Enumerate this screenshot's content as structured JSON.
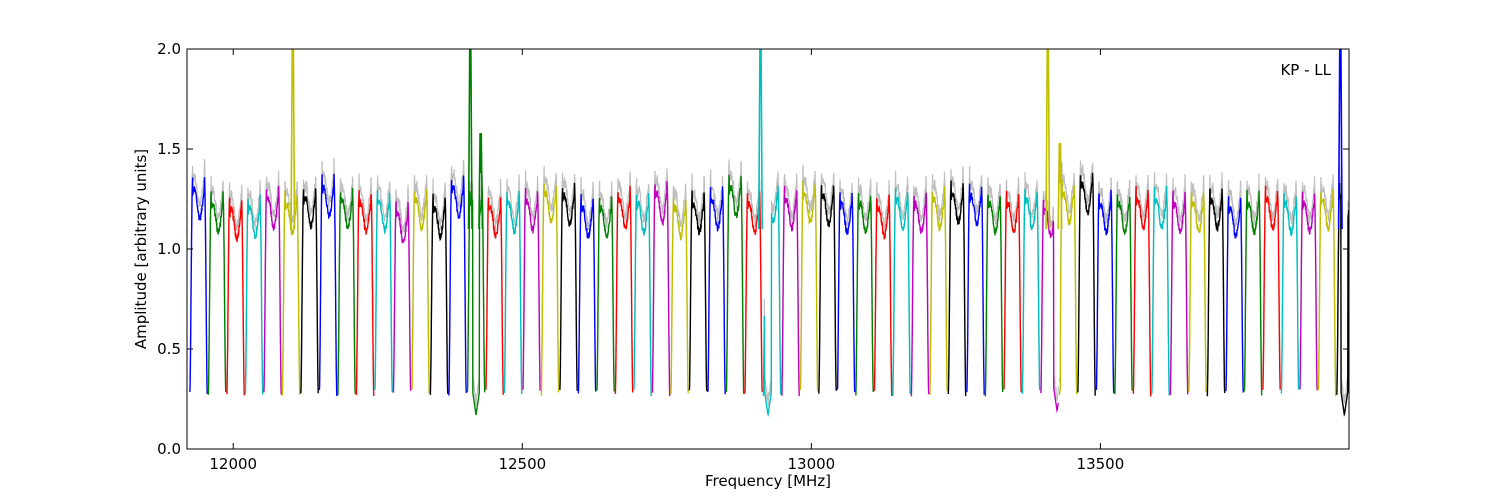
{
  "chart_data": {
    "type": "line",
    "title": "",
    "xlabel": "Frequency [MHz]",
    "ylabel": "Amplitude [arbitrary units]",
    "xlim": [
      11920,
      13930
    ],
    "ylim": [
      0.0,
      2.0
    ],
    "xticks": [
      12000,
      12500,
      13000,
      13500
    ],
    "yticks": [
      0.0,
      0.5,
      1.0,
      1.5,
      2.0
    ],
    "xtick_labels": [
      "12000",
      "12500",
      "13000",
      "13500"
    ],
    "ytick_labels": [
      "0.0",
      "0.5",
      "1.0",
      "1.5",
      "2.0"
    ],
    "annotation": "KP - LL",
    "annotation_position": "top-right",
    "grid": false,
    "legend": false,
    "color_cycle": [
      "#0000ff",
      "#008000",
      "#ff0000",
      "#00bfbf",
      "#bf00bf",
      "#bfbf00",
      "#000000"
    ],
    "background_trace_color": "#bfbfbf",
    "channel_start": 11925,
    "channel_width": 32,
    "channel_count": 63,
    "channel_shape": "bandpass: steep drop to ~0.28 at both edges, flat ~1.2 in the middle, slight peak near each edge",
    "channel_levels": [
      1.27,
      1.2,
      1.17,
      1.18,
      1.22,
      1.2,
      1.23,
      1.28,
      1.22,
      1.2,
      1.21,
      1.15,
      1.22,
      1.18,
      1.28,
      1.22,
      1.18,
      1.2,
      1.21,
      1.25,
      1.24,
      1.18,
      1.18,
      1.22,
      1.2,
      1.25,
      1.18,
      1.2,
      1.22,
      1.28,
      1.2,
      1.25,
      1.22,
      1.25,
      1.24,
      1.2,
      1.2,
      1.18,
      1.22,
      1.2,
      1.22,
      1.25,
      1.24,
      1.2,
      1.2,
      1.22,
      1.18,
      1.25,
      1.3,
      1.2,
      1.2,
      1.22,
      1.22,
      1.2,
      1.2,
      1.22,
      1.18,
      1.2,
      1.22,
      1.2,
      1.2,
      1.22,
      1.25
    ],
    "spikes": [
      {
        "x": 12103,
        "peak": 2.0,
        "color": "#bfbf00"
      },
      {
        "x": 12410,
        "peak": 2.0,
        "color": "#008000"
      },
      {
        "x": 12428,
        "peak": 1.58,
        "color": "#008000"
      },
      {
        "x": 12912,
        "peak": 2.0,
        "color": "#00bfbf"
      },
      {
        "x": 13409,
        "peak": 2.0,
        "color": "#bfbf00"
      },
      {
        "x": 13430,
        "peak": 1.53,
        "color": "#bfbf00"
      },
      {
        "x": 13915,
        "peak": 2.0,
        "color": "#0000ff"
      }
    ],
    "dips": [
      {
        "x": 12420,
        "value": 0.17
      },
      {
        "x": 12925,
        "value": 0.17
      },
      {
        "x": 13425,
        "value": 0.19
      },
      {
        "x": 13922,
        "value": 0.17
      }
    ]
  }
}
